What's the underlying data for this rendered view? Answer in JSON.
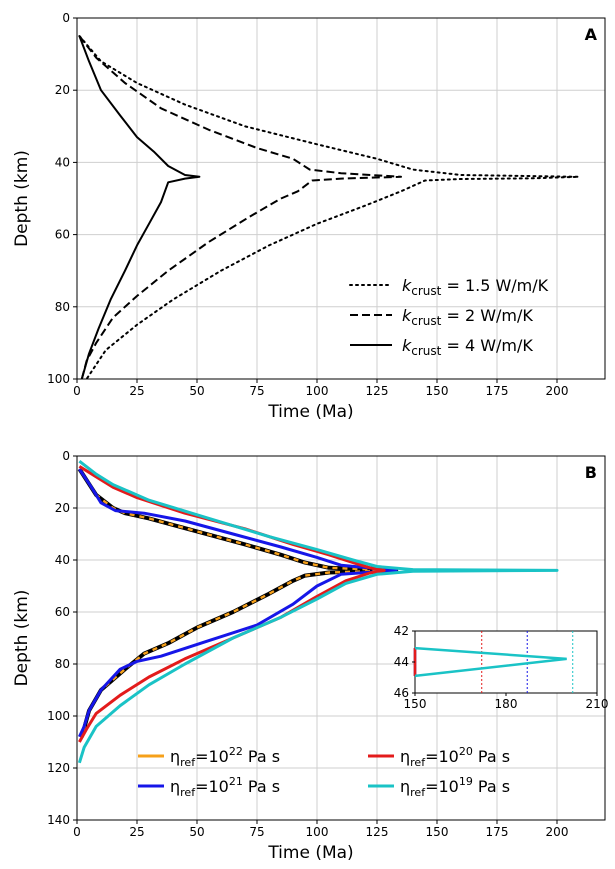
{
  "chart_data": [
    {
      "panel": "A",
      "type": "line",
      "xlabel": "Time (Ma)",
      "ylabel": "Depth (km)",
      "xlim": [
        0,
        220
      ],
      "ylim": [
        100,
        0
      ],
      "xticks": [
        "0",
        "25",
        "50",
        "75",
        "100",
        "125",
        "150",
        "175",
        "200"
      ],
      "yticks": [
        "0",
        "20",
        "40",
        "60",
        "80",
        "100"
      ],
      "grid": true,
      "legend_position": "lower-right",
      "series": [
        {
          "name": "k_crust = 1.5 W/m/K",
          "label_base": "k",
          "label_sub": "crust",
          "label_value": " = 1.5 W/m/K",
          "style": "dotted",
          "color": "#000000",
          "points": [
            [
              1,
              5
            ],
            [
              10,
              12
            ],
            [
              25,
              18
            ],
            [
              45,
              24
            ],
            [
              70,
              30
            ],
            [
              100,
              35
            ],
            [
              125,
              39
            ],
            [
              140,
              42
            ],
            [
              160,
              43.5
            ],
            [
              190,
              43.8
            ],
            [
              209,
              44
            ],
            [
              190,
              44.4
            ],
            [
              160,
              44.6
            ],
            [
              145,
              45
            ],
            [
              135,
              48
            ],
            [
              120,
              52
            ],
            [
              100,
              57
            ],
            [
              80,
              63
            ],
            [
              60,
              70
            ],
            [
              40,
              78
            ],
            [
              25,
              85
            ],
            [
              12,
              92
            ],
            [
              4,
              100
            ]
          ]
        },
        {
          "name": "k_crust = 2 W/m/K",
          "label_base": "k",
          "label_sub": "crust",
          "label_value": " = 2 W/m/K",
          "style": "dashed",
          "color": "#000000",
          "points": [
            [
              1,
              5
            ],
            [
              8,
              11
            ],
            [
              20,
              18
            ],
            [
              35,
              25
            ],
            [
              55,
              31
            ],
            [
              75,
              36
            ],
            [
              90,
              39
            ],
            [
              97,
              42
            ],
            [
              110,
              43
            ],
            [
              135,
              44
            ],
            [
              110,
              44.5
            ],
            [
              98,
              45
            ],
            [
              92,
              48
            ],
            [
              85,
              50
            ],
            [
              72,
              55
            ],
            [
              55,
              62
            ],
            [
              38,
              70
            ],
            [
              25,
              77
            ],
            [
              15,
              83
            ],
            [
              8,
              90
            ],
            [
              4,
              95
            ],
            [
              2,
              100
            ]
          ]
        },
        {
          "name": "k_crust = 4 W/m/K",
          "label_base": "k",
          "label_sub": "crust",
          "label_value": " = 4 W/m/K",
          "style": "solid",
          "color": "#000000",
          "points": [
            [
              1,
              5
            ],
            [
              5,
              12
            ],
            [
              10,
              20
            ],
            [
              18,
              27
            ],
            [
              25,
              33
            ],
            [
              32,
              37
            ],
            [
              38,
              41
            ],
            [
              45,
              43.5
            ],
            [
              51,
              44
            ],
            [
              45,
              44.5
            ],
            [
              38,
              45.5
            ],
            [
              35,
              51
            ],
            [
              30,
              57
            ],
            [
              25,
              63
            ],
            [
              20,
              70
            ],
            [
              14,
              78
            ],
            [
              9,
              86
            ],
            [
              5,
              93
            ],
            [
              2,
              100
            ]
          ]
        }
      ]
    },
    {
      "panel": "B",
      "type": "line",
      "xlabel": "Time (Ma)",
      "ylabel": "Depth (km)",
      "xlim": [
        0,
        220
      ],
      "ylim": [
        140,
        0
      ],
      "xticks": [
        "0",
        "25",
        "50",
        "75",
        "100",
        "125",
        "150",
        "175",
        "200"
      ],
      "yticks": [
        "0",
        "20",
        "40",
        "60",
        "80",
        "100",
        "120",
        "140"
      ],
      "grid": true,
      "legend_position": "bottom",
      "series": [
        {
          "name": "η_ref=10^22 Pa s",
          "sym": "η",
          "sub": "ref",
          "base": "=10",
          "exp": "22",
          "unit": " Pa s",
          "color": "#f6a01a",
          "style": "dashed-on-black",
          "points": [
            [
              1,
              5
            ],
            [
              8,
              15
            ],
            [
              15,
              20
            ],
            [
              20,
              22
            ],
            [
              30,
              24
            ],
            [
              50,
              29
            ],
            [
              70,
              34
            ],
            [
              85,
              38
            ],
            [
              95,
              41
            ],
            [
              105,
              43
            ],
            [
              133,
              44
            ],
            [
              105,
              44.8
            ],
            [
              95,
              46
            ],
            [
              90,
              48
            ],
            [
              80,
              53
            ],
            [
              65,
              60
            ],
            [
              50,
              66
            ],
            [
              38,
              72
            ],
            [
              28,
              76
            ],
            [
              20,
              82
            ],
            [
              10,
              90
            ],
            [
              5,
              98
            ],
            [
              2,
              108
            ]
          ]
        },
        {
          "name": "η_ref=10^21 Pa s",
          "sym": "η",
          "sub": "ref",
          "base": "=10",
          "exp": "21",
          "unit": " Pa s",
          "color": "#1616e8",
          "style": "solid",
          "points": [
            [
              1,
              5
            ],
            [
              6,
              12
            ],
            [
              10,
              18
            ],
            [
              16,
              21
            ],
            [
              28,
              22
            ],
            [
              45,
              25
            ],
            [
              65,
              30
            ],
            [
              85,
              35
            ],
            [
              100,
              39
            ],
            [
              110,
              42
            ],
            [
              133,
              44
            ],
            [
              110,
              45.5
            ],
            [
              100,
              50
            ],
            [
              90,
              57
            ],
            [
              75,
              65
            ],
            [
              55,
              71
            ],
            [
              35,
              77
            ],
            [
              25,
              79
            ],
            [
              18,
              82
            ],
            [
              10,
              90
            ],
            [
              5,
              98
            ],
            [
              3,
              104
            ],
            [
              1,
              108
            ]
          ]
        },
        {
          "name": "η_ref=10^20 Pa s",
          "sym": "η",
          "sub": "ref",
          "base": "=10",
          "exp": "20",
          "unit": " Pa s",
          "color": "#e31b1b",
          "style": "solid",
          "points": [
            [
              1,
              4
            ],
            [
              8,
              8
            ],
            [
              15,
              12
            ],
            [
              25,
              16
            ],
            [
              45,
              22
            ],
            [
              70,
              28
            ],
            [
              90,
              34
            ],
            [
              105,
              38
            ],
            [
              115,
              41
            ],
            [
              122,
              43
            ],
            [
              128,
              44
            ],
            [
              122,
              45
            ],
            [
              112,
              48
            ],
            [
              100,
              54
            ],
            [
              85,
              62
            ],
            [
              65,
              70
            ],
            [
              45,
              78
            ],
            [
              30,
              85
            ],
            [
              18,
              92
            ],
            [
              8,
              99
            ],
            [
              4,
              105
            ],
            [
              1,
              110
            ]
          ]
        },
        {
          "name": "η_ref=10^19 Pa s",
          "sym": "η",
          "sub": "ref",
          "base": "=10",
          "exp": "19",
          "unit": " Pa s",
          "color": "#1ac3c6",
          "style": "solid",
          "points": [
            [
              1,
              2
            ],
            [
              8,
              7
            ],
            [
              15,
              11
            ],
            [
              30,
              17
            ],
            [
              55,
              24
            ],
            [
              80,
              31
            ],
            [
              100,
              36
            ],
            [
              115,
              40
            ],
            [
              125,
              42.5
            ],
            [
              140,
              43.7
            ],
            [
              200,
              44
            ],
            [
              140,
              44.3
            ],
            [
              125,
              45.5
            ],
            [
              112,
              49
            ],
            [
              100,
              55
            ],
            [
              85,
              62
            ],
            [
              65,
              70
            ],
            [
              45,
              80
            ],
            [
              30,
              88
            ],
            [
              18,
              96
            ],
            [
              8,
              104
            ],
            [
              3,
              112
            ],
            [
              1,
              118
            ]
          ]
        }
      ],
      "inset": {
        "xlim": [
          150,
          210
        ],
        "ylim": [
          46,
          42
        ],
        "xticks": [
          "150",
          "180",
          "210"
        ],
        "yticks": [
          "42",
          "44",
          "46"
        ],
        "vlines": [
          {
            "x": 172,
            "color": "#e31b1b"
          },
          {
            "x": 187,
            "color": "#1616e8"
          },
          {
            "x": 202,
            "color": "#1ac3c6"
          }
        ]
      }
    }
  ],
  "panels": {
    "a_label": "A",
    "b_label": "B"
  }
}
